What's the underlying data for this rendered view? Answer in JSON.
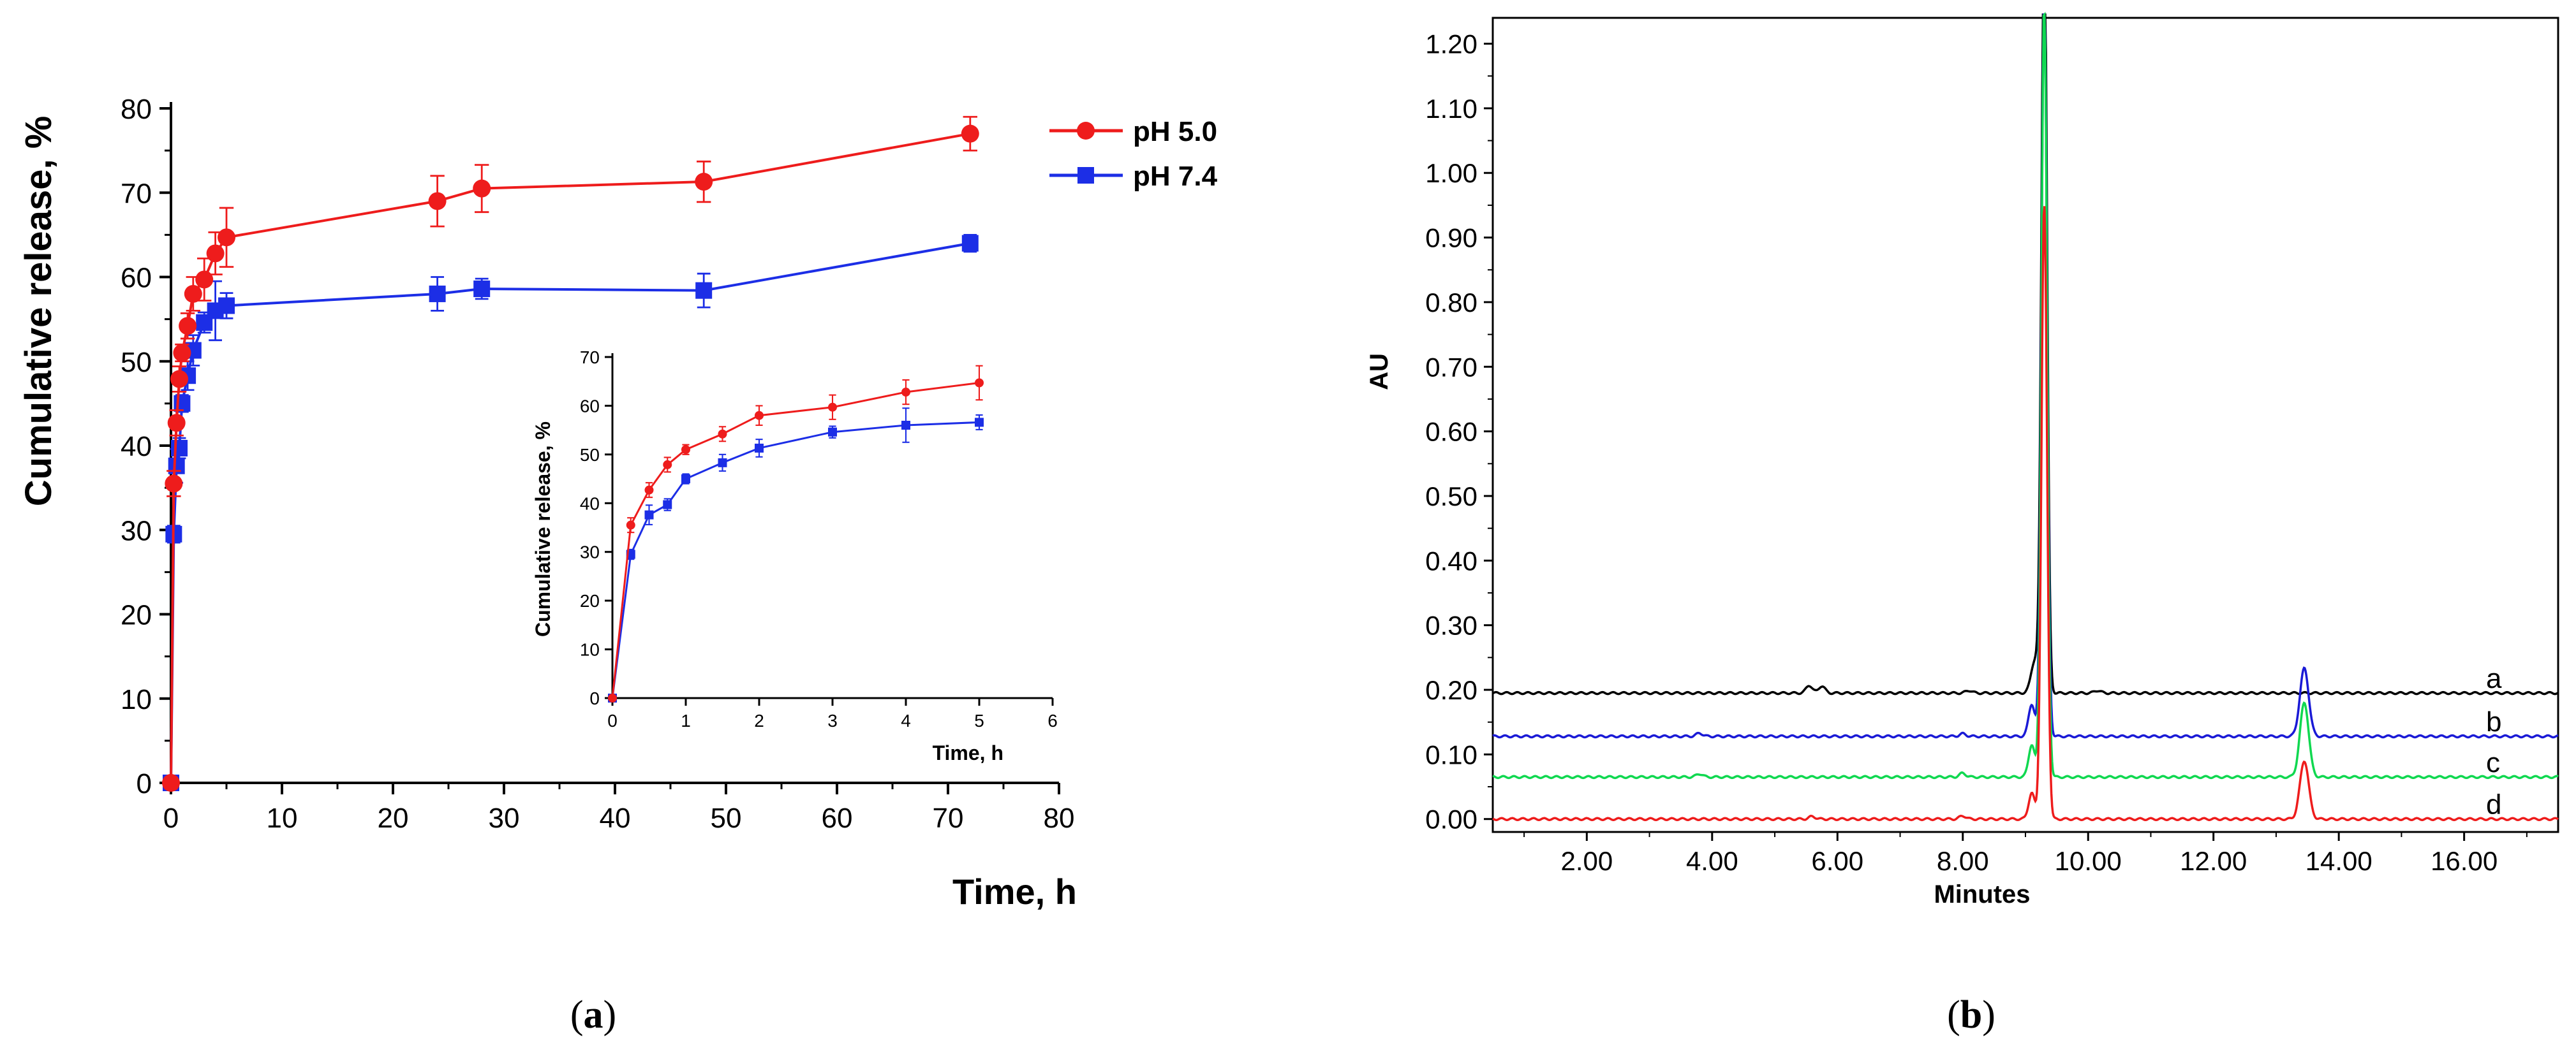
{
  "panels": {
    "a": {
      "label_open": "(",
      "label_letter": "a",
      "label_close": ")"
    },
    "b": {
      "label_open": "(",
      "label_letter": "b",
      "label_close": ")"
    }
  },
  "chart_data": [
    {
      "id": "release-main",
      "type": "line",
      "title": "",
      "xlabel": "Time, h",
      "ylabel": "Cumulative release, %",
      "xlim": [
        0,
        80
      ],
      "ylim": [
        0,
        80
      ],
      "xticks": [
        0,
        10,
        20,
        30,
        40,
        50,
        60,
        70,
        80
      ],
      "yticks": [
        0,
        10,
        20,
        30,
        40,
        50,
        60,
        70,
        80
      ],
      "legend": "top-right",
      "series": [
        {
          "name": "pH 5.0",
          "color": "#ee1c1c",
          "marker": "circle",
          "x": [
            0,
            0.25,
            0.5,
            0.75,
            1,
            1.5,
            2,
            3,
            4,
            5,
            24,
            28,
            48,
            72
          ],
          "y": [
            0,
            35.5,
            42.7,
            47.9,
            51,
            54.2,
            58,
            59.7,
            62.8,
            64.7,
            69,
            70.5,
            71.3,
            77
          ],
          "err": [
            0,
            1.5,
            1.5,
            1.5,
            1,
            1.5,
            2,
            2.5,
            2.5,
            3.5,
            3,
            2.8,
            2.4,
            2
          ]
        },
        {
          "name": "pH 7.4",
          "color": "#1c2ee6",
          "marker": "square",
          "x": [
            0,
            0.25,
            0.5,
            0.75,
            1,
            1.5,
            2,
            3,
            4,
            5,
            24,
            28,
            48,
            72
          ],
          "y": [
            0,
            29.5,
            37.6,
            39.7,
            45,
            48.3,
            51.3,
            54.6,
            56,
            56.6,
            58,
            58.6,
            58.4,
            64
          ],
          "err": [
            0,
            1,
            2,
            1.2,
            1,
            1.7,
            1.8,
            1.2,
            3.5,
            1.5,
            2,
            1.2,
            2,
            1
          ]
        }
      ]
    },
    {
      "id": "release-inset",
      "type": "line",
      "title": "",
      "xlabel": "Time, h",
      "ylabel": "Cumulative release, %",
      "xlim": [
        0,
        6
      ],
      "ylim": [
        0,
        70
      ],
      "xticks": [
        0,
        1,
        2,
        3,
        4,
        5,
        6
      ],
      "yticks": [
        0,
        10,
        20,
        30,
        40,
        50,
        60,
        70
      ],
      "series_ref": [
        "pH 5.0",
        "pH 7.4"
      ]
    },
    {
      "id": "chromatogram",
      "type": "line",
      "title": "",
      "xlabel": "Minutes",
      "ylabel": "AU",
      "xlim": [
        0.5,
        17.5
      ],
      "ylim": [
        -0.02,
        1.24
      ],
      "xticks": [
        2,
        4,
        6,
        8,
        10,
        12,
        14,
        16
      ],
      "xtick_labels": [
        "2.00",
        "4.00",
        "6.00",
        "8.00",
        "10.00",
        "12.00",
        "14.00",
        "16.00"
      ],
      "yticks": [
        0,
        0.1,
        0.2,
        0.3,
        0.4,
        0.5,
        0.6,
        0.7,
        0.8,
        0.9,
        1.0,
        1.1,
        1.2
      ],
      "ytick_labels": [
        "0.00",
        "0.10",
        "0.20",
        "0.30",
        "0.40",
        "0.50",
        "0.60",
        "0.70",
        "0.80",
        "0.90",
        "1.00",
        "1.10",
        "1.20"
      ],
      "series": [
        {
          "name": "a",
          "color": "#000000",
          "baseline": 0.195,
          "peaks": [
            [
              5.55,
              0.012,
              0.05
            ],
            [
              5.75,
              0.011,
              0.05
            ],
            [
              8.1,
              0.004,
              0.05
            ],
            [
              9.15,
              0.05,
              0.06
            ],
            [
              9.3,
              1.2,
              0.045
            ],
            [
              10.15,
              0.004,
              0.05
            ]
          ]
        },
        {
          "name": "b",
          "color": "#1a1ad6",
          "baseline": 0.128,
          "peaks": [
            [
              3.8,
              0.005,
              0.05
            ],
            [
              8.0,
              0.004,
              0.05
            ],
            [
              9.1,
              0.05,
              0.05
            ],
            [
              9.3,
              1.15,
              0.045
            ],
            [
              13.45,
              0.105,
              0.07
            ]
          ]
        },
        {
          "name": "c",
          "color": "#10d850",
          "baseline": 0.065,
          "peaks": [
            [
              3.8,
              0.005,
              0.05
            ],
            [
              8.0,
              0.006,
              0.05
            ],
            [
              9.1,
              0.05,
              0.05
            ],
            [
              9.3,
              1.2,
              0.045
            ],
            [
              13.45,
              0.115,
              0.07
            ]
          ]
        },
        {
          "name": "d",
          "color": "#ee1c1c",
          "baseline": 0.0,
          "peaks": [
            [
              5.6,
              0.004,
              0.05
            ],
            [
              8.0,
              0.005,
              0.05
            ],
            [
              9.1,
              0.04,
              0.05
            ],
            [
              9.3,
              0.95,
              0.045
            ],
            [
              13.45,
              0.09,
              0.07
            ]
          ]
        }
      ]
    }
  ]
}
